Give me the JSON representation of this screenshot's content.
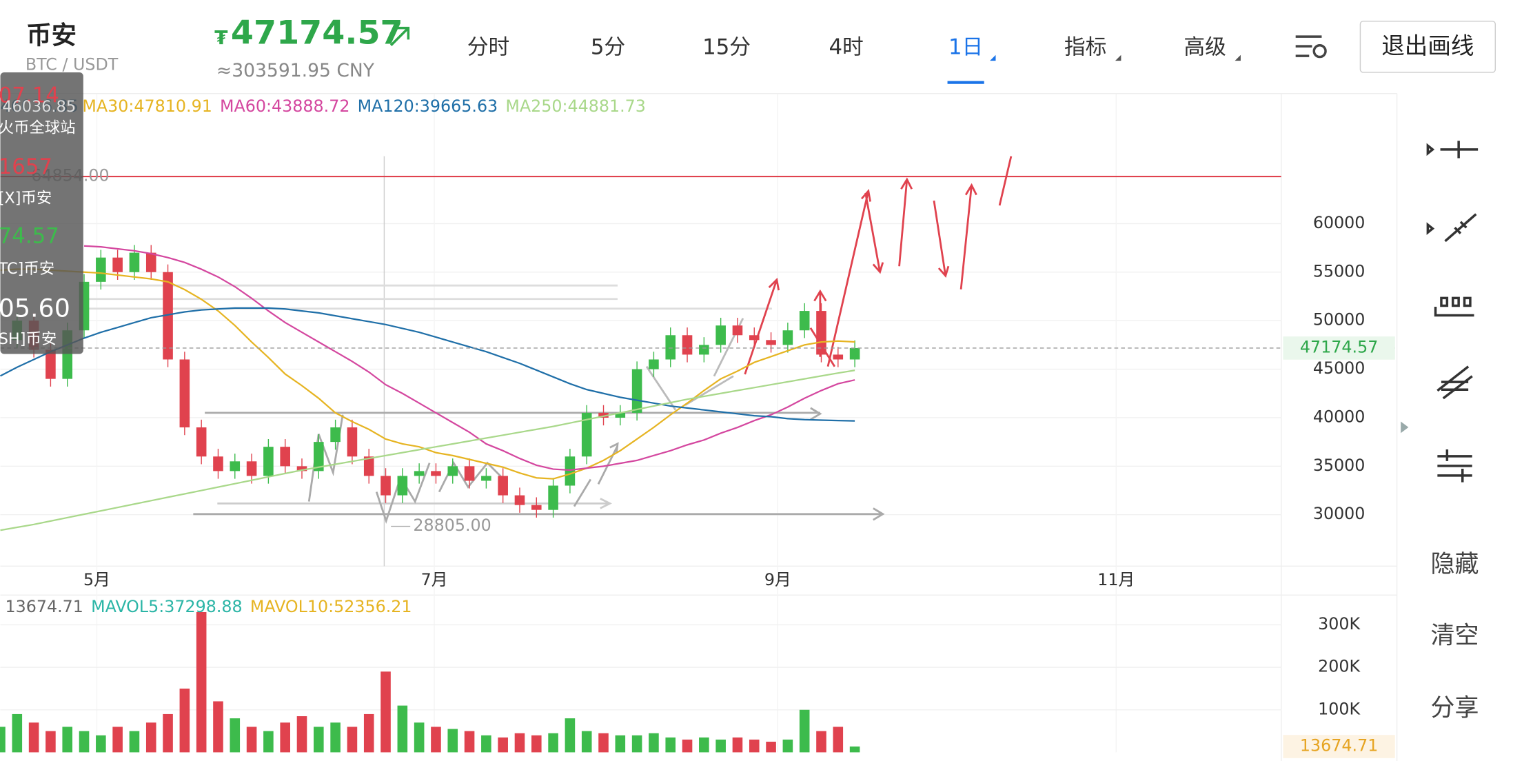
{
  "header": {
    "name": "币安",
    "pair": "BTC / USDT",
    "currency": "₮",
    "price": "47174.57",
    "cny": "≈303591.95 CNY"
  },
  "tabs": [
    "分时",
    "5分",
    "15分",
    "4时",
    "1日",
    "指标",
    "高级"
  ],
  "exit_button": "退出画线",
  "side_menu": [
    "隐藏",
    "清空",
    "分享"
  ],
  "overlay": [
    "07.14",
    "46036.85",
    "火币全球站",
    "1657",
    "[X]币安",
    "74.57",
    "TC]币安",
    "05.60",
    "SH]币安"
  ],
  "chart_data": {
    "type": "candlestick",
    "values": [
      48000,
      50000,
      47000,
      44000,
      49000,
      54000,
      56500,
      55000,
      57000,
      55000,
      46000,
      39000,
      36000,
      34500,
      35500,
      34000,
      37000,
      35000,
      34500,
      37500,
      39000,
      36000,
      34000,
      32000,
      34000,
      34500,
      34000,
      35000,
      33500,
      34000,
      32000,
      31000,
      30500,
      33000,
      36000,
      40500,
      40000,
      40500,
      45000,
      46000,
      48500,
      46500,
      47500,
      49500,
      48500,
      48000,
      47500,
      49000,
      51000,
      46500,
      46000,
      47174.57
    ],
    "series": [
      {
        "name": "MA30:47810.91",
        "color": "#e6b422",
        "values": [
          55200,
          55300,
          55300,
          55200,
          55100,
          55000,
          54900,
          54700,
          54500,
          54300,
          54000,
          53200,
          52200,
          51000,
          49500,
          47800,
          46200,
          44500,
          43300,
          42000,
          40500,
          39600,
          38800,
          37800,
          37300,
          37000,
          36400,
          36100,
          35700,
          35300,
          34900,
          34300,
          33800,
          33700,
          34200,
          34800,
          35600,
          36600,
          37800,
          39000,
          40300,
          41500,
          42800,
          44000,
          44800,
          45700,
          46300,
          46900,
          47500,
          47800,
          47900,
          47810.91
        ]
      },
      {
        "name": "MA60:43888.72",
        "color": "#d4479f",
        "values": [
          null,
          null,
          null,
          null,
          null,
          57700,
          57600,
          57400,
          57200,
          56900,
          56500,
          56000,
          55300,
          54500,
          53500,
          52300,
          51000,
          49800,
          48800,
          47800,
          46800,
          45800,
          44700,
          43400,
          42500,
          41500,
          40500,
          39500,
          38500,
          37300,
          36600,
          35800,
          35100,
          34700,
          34600,
          34800,
          35000,
          35300,
          35600,
          36100,
          36600,
          37200,
          37700,
          38400,
          39000,
          39700,
          40300,
          41100,
          42000,
          42800,
          43500,
          43888.72
        ]
      },
      {
        "name": "MA120:39665.63",
        "color": "#1f6fa8",
        "values": [
          44300,
          45200,
          46000,
          46800,
          47500,
          48200,
          48800,
          49300,
          49800,
          50300,
          50600,
          50900,
          51100,
          51200,
          51300,
          51300,
          51300,
          51200,
          51000,
          50800,
          50500,
          50200,
          49900,
          49600,
          49200,
          48800,
          48300,
          47800,
          47300,
          46800,
          46200,
          45600,
          44900,
          44200,
          43500,
          42900,
          42500,
          42100,
          41800,
          41500,
          41200,
          41000,
          40800,
          40600,
          40400,
          40200,
          40100,
          39900,
          39800,
          39750,
          39700,
          39665.63
        ]
      },
      {
        "name": "MA250:44881.73",
        "color": "#a9d88a",
        "values": [
          28400,
          28700,
          29000,
          29350,
          29700,
          30050,
          30400,
          30750,
          31100,
          31450,
          31800,
          32150,
          32500,
          32850,
          33200,
          33550,
          33900,
          34250,
          34600,
          34900,
          35200,
          35500,
          35800,
          36100,
          36400,
          36700,
          37000,
          37300,
          37600,
          37900,
          38200,
          38500,
          38800,
          39100,
          39450,
          39800,
          40150,
          40500,
          40850,
          41200,
          41550,
          41900,
          42200,
          42500,
          42800,
          43100,
          43400,
          43700,
          44000,
          44300,
          44600,
          44881.73
        ]
      }
    ],
    "ma_prefix": "46036.85",
    "up_color": "#3dbb4c",
    "down_color": "#e0424e",
    "xlim": [
      0,
      76.45
    ],
    "xticks": [
      {
        "value": 5.76,
        "label": "5月"
      },
      {
        "value": 25.9,
        "label": "7月"
      },
      {
        "value": 46.4,
        "label": "9月"
      },
      {
        "value": 66.6,
        "label": "11月"
      }
    ],
    "ylim": [
      24700,
      73400
    ],
    "yticks": [
      30000,
      35000,
      40000,
      45000,
      50000,
      55000,
      60000
    ],
    "high_line": {
      "value": 64854,
      "label": "64854.00",
      "color": "#e0424e"
    },
    "low_mark": {
      "value": 28805,
      "label": "28805.00"
    },
    "volume": {
      "values": [
        60000,
        90000,
        70000,
        50000,
        60000,
        50000,
        40000,
        60000,
        50000,
        70000,
        90000,
        150000,
        330000,
        120000,
        80000,
        60000,
        50000,
        70000,
        85000,
        60000,
        70000,
        60000,
        90000,
        190000,
        110000,
        70000,
        60000,
        55000,
        50000,
        40000,
        35000,
        45000,
        40000,
        45000,
        80000,
        50000,
        45000,
        40000,
        40000,
        45000,
        35000,
        30000,
        35000,
        30000,
        35000,
        30000,
        25000,
        30000,
        100000,
        50000,
        60000,
        13674.71
      ],
      "value_label": "13674.71",
      "legend": [
        "13674.71",
        "MAVOL5:37298.88",
        "MAVOL10:52356.21"
      ],
      "ylim": [
        0,
        370000
      ],
      "yticks": [
        {
          "value": 100000,
          "label": "100K"
        },
        {
          "value": 200000,
          "label": "200K"
        },
        {
          "value": 300000,
          "label": "300K"
        }
      ]
    }
  }
}
